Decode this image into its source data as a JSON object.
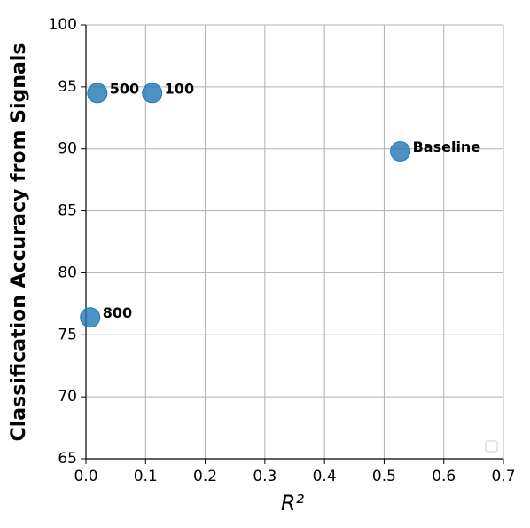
{
  "chart_data": {
    "type": "scatter",
    "x_label": "R²",
    "y_label": "Classification Accuracy from Signals",
    "x": [
      0.019,
      0.111,
      0.527,
      0.007
    ],
    "values": [
      94.5,
      94.5,
      89.8,
      76.4
    ],
    "labels": [
      "500",
      "100",
      "Baseline",
      "800"
    ],
    "color": "#1f77b4",
    "xlim": [
      0,
      0.7
    ],
    "ylim": [
      65,
      100
    ],
    "xticks": [
      {
        "value": 0,
        "label": "0.0"
      },
      0.1,
      0.2,
      0.3,
      0.4,
      0.5,
      0.6,
      0.7
    ],
    "yticks": [
      65,
      70,
      75,
      80,
      85,
      90,
      95,
      100
    ],
    "grid": true
  }
}
